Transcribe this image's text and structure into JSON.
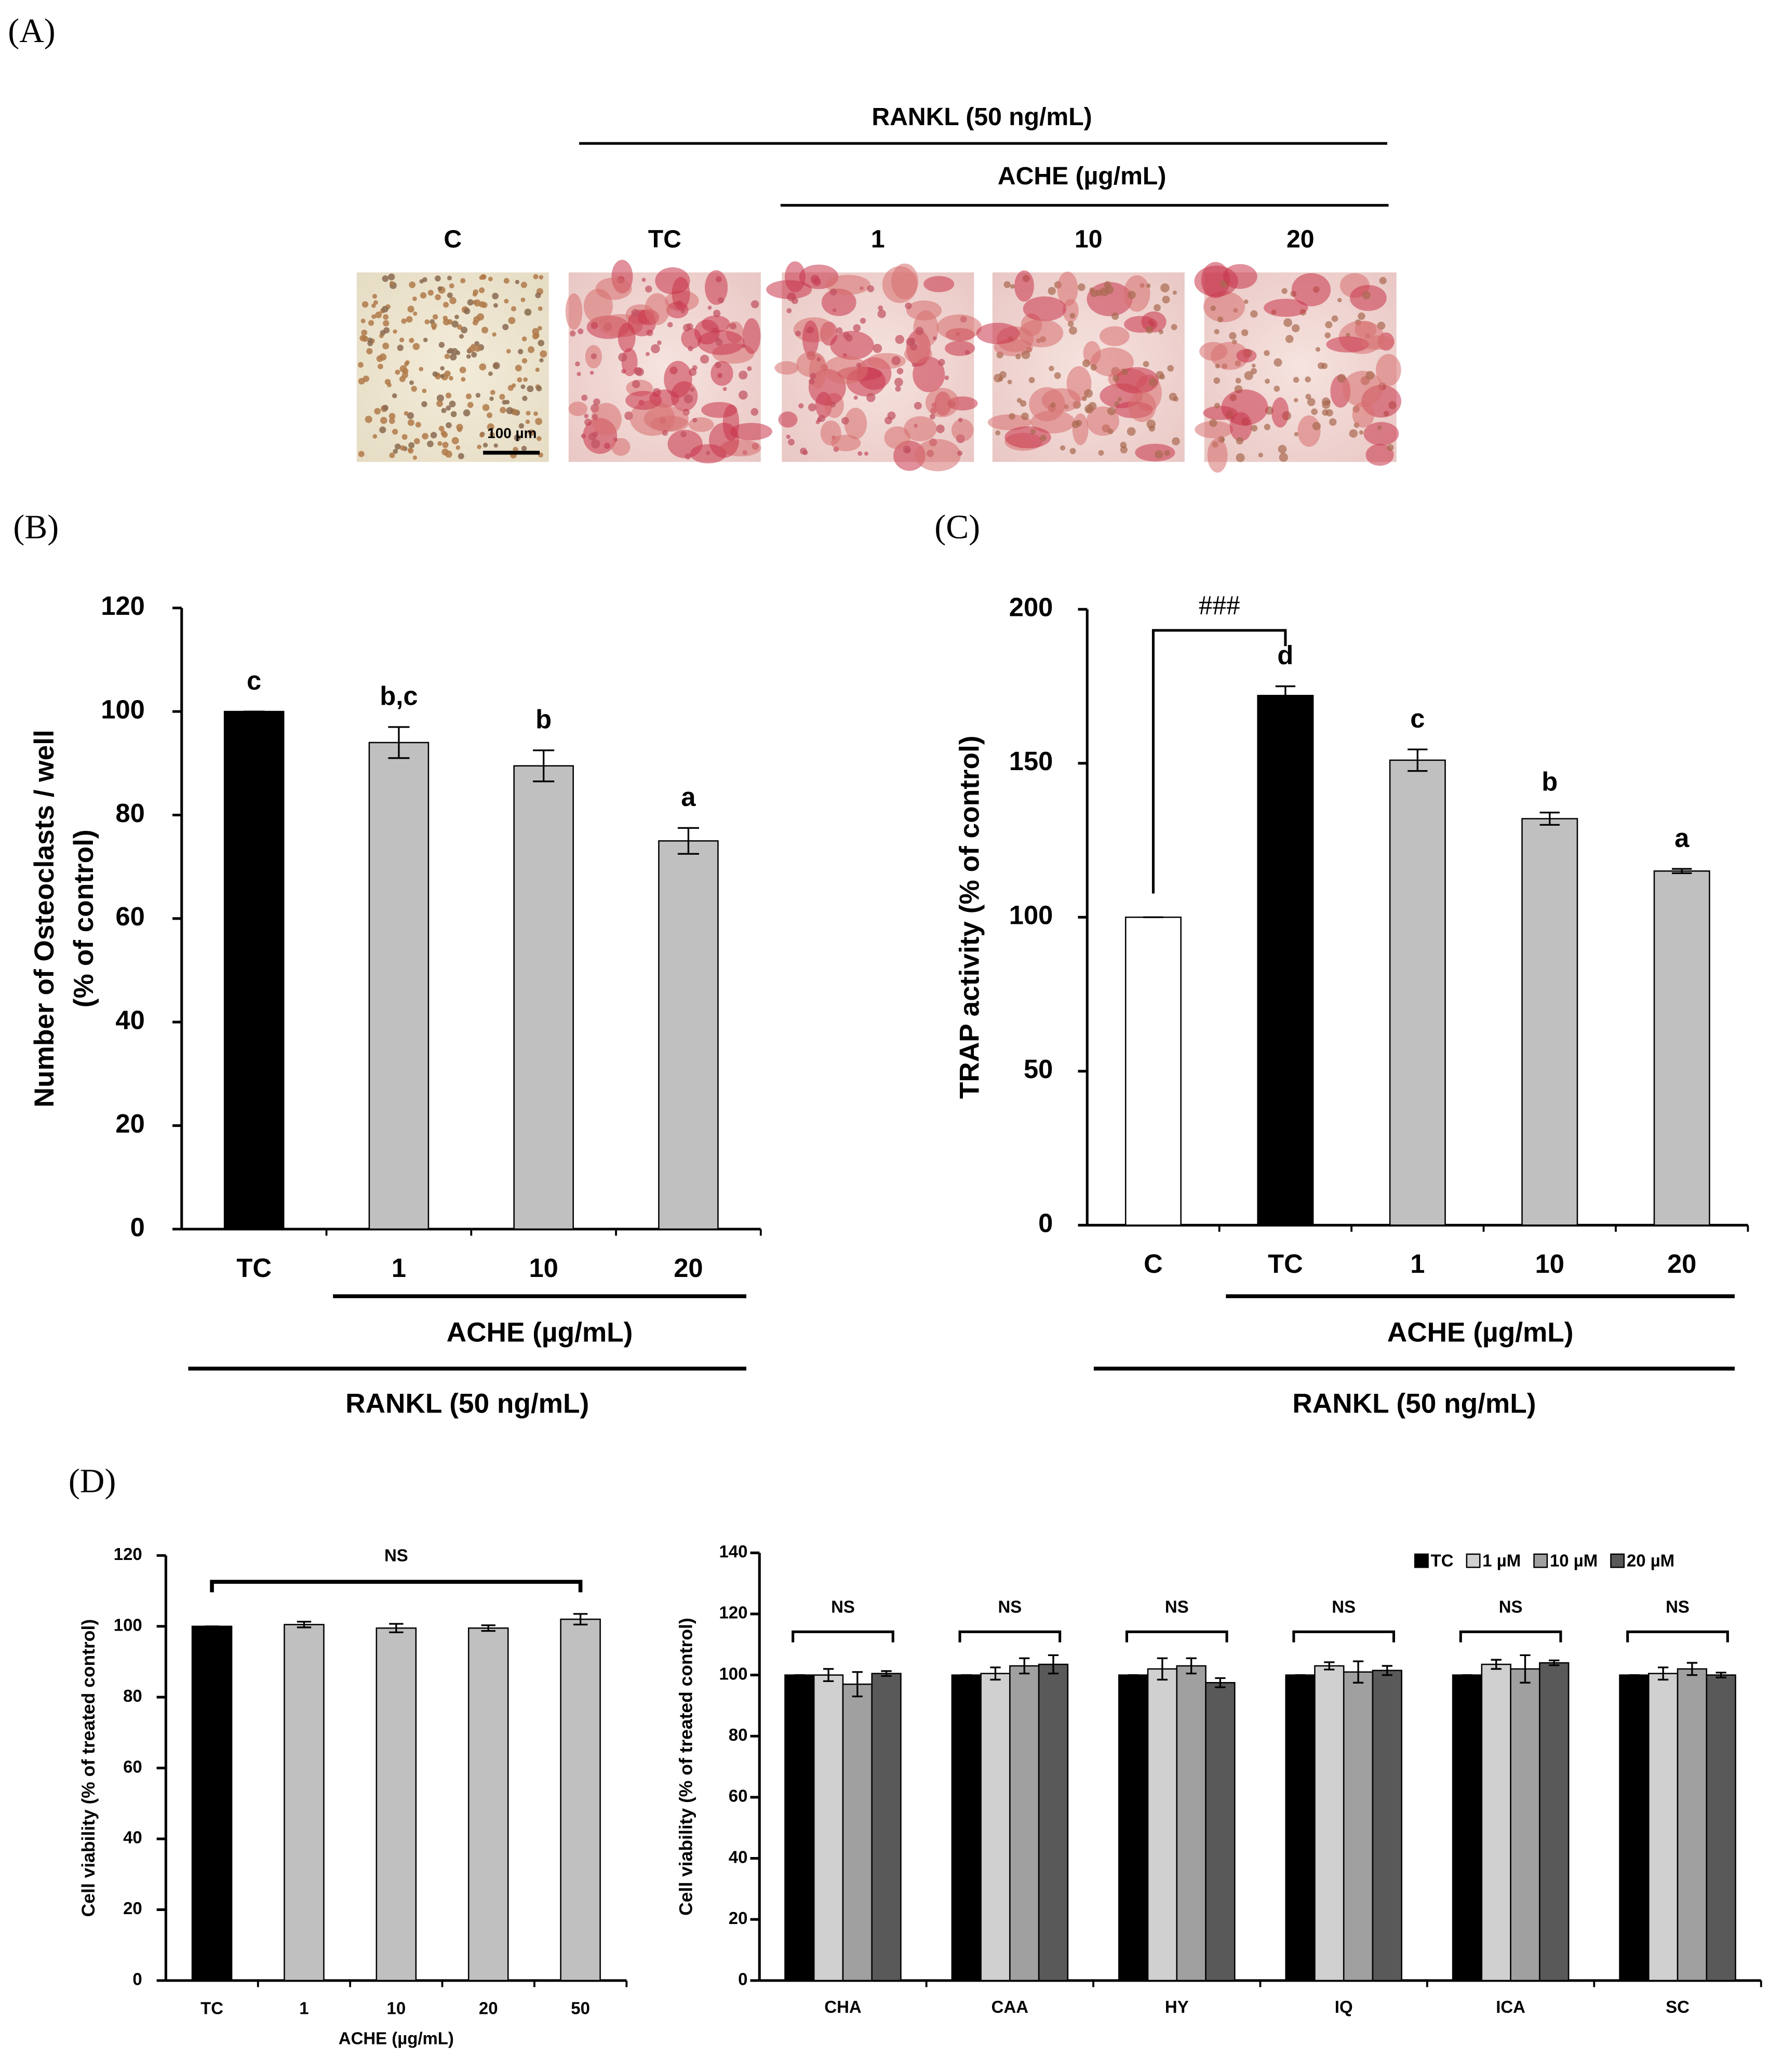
{
  "panel_a": {
    "label": "(A)",
    "rankl_label": "RANKL (50 ng/mL)",
    "ache_label": "ACHE (µg/mL)",
    "image_labels": [
      "C",
      "TC",
      "1",
      "10",
      "20"
    ],
    "scale_bar": "100 µm"
  },
  "chart_data": [
    {
      "type": "bar",
      "panel_label": "(B)",
      "categories": [
        "TC",
        "1",
        "10",
        "20"
      ],
      "values": [
        100,
        94,
        89.5,
        75
      ],
      "errors": [
        0,
        3,
        3,
        2.5
      ],
      "colors": [
        "#000000",
        "#c0c0c0",
        "#c0c0c0",
        "#c0c0c0"
      ],
      "bar_labels": [
        "c",
        "b,c",
        "b",
        "a"
      ],
      "ylabel": [
        "Number of Osteoclasts / well",
        "(% of control)"
      ],
      "ylim": [
        0,
        120
      ],
      "yticks": [
        0,
        20,
        40,
        60,
        80,
        100,
        120
      ],
      "group_labels": [
        "ACHE (µg/mL)",
        "RANKL (50 ng/mL)"
      ]
    },
    {
      "type": "bar",
      "panel_label": "(C)",
      "categories": [
        "C",
        "TC",
        "1",
        "10",
        "20"
      ],
      "values": [
        100,
        172,
        151,
        132,
        115
      ],
      "errors": [
        0,
        3,
        3.5,
        2,
        0.7
      ],
      "colors": [
        "#ffffff",
        "#000000",
        "#c0c0c0",
        "#c0c0c0",
        "#c0c0c0"
      ],
      "bar_labels": [
        null,
        "d",
        "c",
        "b",
        "a"
      ],
      "annotation": "###",
      "ylabel": [
        "TRAP  activity (% of control)"
      ],
      "ylim": [
        0,
        200
      ],
      "yticks": [
        0,
        50,
        100,
        150,
        200
      ],
      "group_labels": [
        "ACHE (µg/mL)",
        "RANKL (50 ng/mL)"
      ]
    },
    {
      "type": "bar",
      "panel_label": "(D)",
      "categories": [
        "TC",
        "1",
        "10",
        "20",
        "50"
      ],
      "values": [
        100,
        100.5,
        99.5,
        99.5,
        102
      ],
      "errors": [
        0,
        0.8,
        1.2,
        0.8,
        1.5
      ],
      "colors": [
        "#000000",
        "#c0c0c0",
        "#c0c0c0",
        "#c0c0c0",
        "#c0c0c0"
      ],
      "annotation": "NS",
      "ylabel": [
        "Cell viability (% of treated control)"
      ],
      "xlabel": "ACHE (µg/mL)",
      "ylim": [
        0,
        120
      ],
      "yticks": [
        0,
        20,
        40,
        60,
        80,
        100,
        120
      ]
    },
    {
      "type": "grouped_bar",
      "categories": [
        "CHA",
        "CAA",
        "HY",
        "IQ",
        "ICA",
        "SC"
      ],
      "series": [
        {
          "name": "TC",
          "color": "#000000",
          "values": [
            100,
            100,
            100,
            100,
            100,
            100
          ],
          "errors": [
            0,
            0,
            0,
            0,
            0,
            0
          ]
        },
        {
          "name": "1 µM",
          "color": "#d0d0d0",
          "values": [
            100,
            100.5,
            102,
            103,
            103.5,
            100.5
          ],
          "errors": [
            2,
            2,
            3.5,
            1.2,
            1.5,
            2
          ]
        },
        {
          "name": "10 µM",
          "color": "#a0a0a0",
          "values": [
            97,
            103,
            103,
            101,
            102,
            102
          ],
          "errors": [
            4,
            2.5,
            2.5,
            3.5,
            4.5,
            2
          ]
        },
        {
          "name": "20 µM",
          "color": "#595959",
          "values": [
            100.5,
            103.5,
            97.5,
            101.5,
            104,
            100
          ],
          "errors": [
            0.8,
            3,
            1.5,
            1.5,
            0.8,
            0.8
          ]
        }
      ],
      "annotations": [
        "NS",
        "NS",
        "NS",
        "NS",
        "NS",
        "NS"
      ],
      "ylabel": [
        "Cell viability (% of treated control)"
      ],
      "ylim": [
        0,
        140
      ],
      "yticks": [
        0,
        20,
        40,
        60,
        80,
        100,
        120,
        140
      ],
      "legend": "top-right"
    }
  ]
}
